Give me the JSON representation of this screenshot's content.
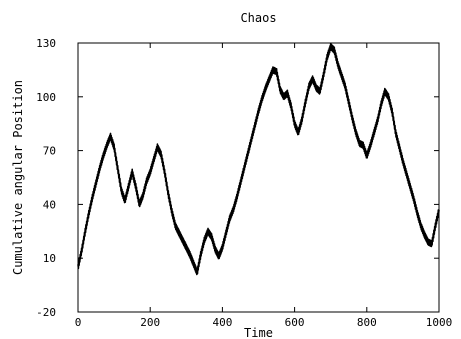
{
  "chart_data": {
    "type": "line",
    "title": "Chaos",
    "xlabel": "Time",
    "ylabel": "Cumulative angular Position",
    "xlim": [
      0,
      1000
    ],
    "ylim": [
      -20,
      130
    ],
    "xticks": [
      0,
      200,
      400,
      600,
      800,
      1000
    ],
    "yticks": [
      -20,
      10,
      40,
      70,
      100,
      130
    ],
    "grid": false,
    "series": [
      {
        "color": "#000000",
        "x": [
          0,
          10,
          20,
          30,
          40,
          50,
          60,
          70,
          80,
          90,
          100,
          110,
          120,
          130,
          140,
          150,
          160,
          170,
          180,
          190,
          200,
          210,
          220,
          230,
          240,
          250,
          260,
          270,
          280,
          290,
          300,
          310,
          320,
          330,
          340,
          350,
          360,
          370,
          380,
          390,
          400,
          410,
          420,
          430,
          440,
          450,
          460,
          470,
          480,
          490,
          500,
          510,
          520,
          530,
          540,
          550,
          560,
          570,
          580,
          590,
          600,
          610,
          620,
          630,
          640,
          650,
          660,
          670,
          680,
          690,
          700,
          710,
          720,
          730,
          740,
          750,
          760,
          770,
          780,
          790,
          800,
          810,
          820,
          830,
          840,
          850,
          860,
          870,
          880,
          890,
          900,
          910,
          920,
          930,
          940,
          950,
          960,
          970,
          980,
          990,
          1000
        ],
        "y": [
          5,
          14,
          25,
          35,
          44,
          52,
          60,
          67,
          73,
          78,
          72,
          60,
          48,
          42,
          50,
          58,
          50,
          40,
          45,
          53,
          58,
          65,
          72,
          68,
          58,
          46,
          36,
          28,
          24,
          20,
          16,
          12,
          7,
          2,
          12,
          20,
          25,
          22,
          15,
          11,
          16,
          24,
          32,
          37,
          44,
          52,
          60,
          68,
          76,
          84,
          92,
          99,
          105,
          110,
          115,
          114,
          104,
          100,
          102,
          95,
          85,
          80,
          87,
          97,
          106,
          110,
          105,
          103,
          112,
          122,
          128,
          126,
          118,
          112,
          106,
          97,
          88,
          80,
          74,
          73,
          67,
          73,
          80,
          87,
          96,
          103,
          100,
          92,
          80,
          72,
          64,
          57,
          50,
          43,
          35,
          28,
          23,
          19,
          18,
          28,
          37
        ]
      }
    ]
  }
}
